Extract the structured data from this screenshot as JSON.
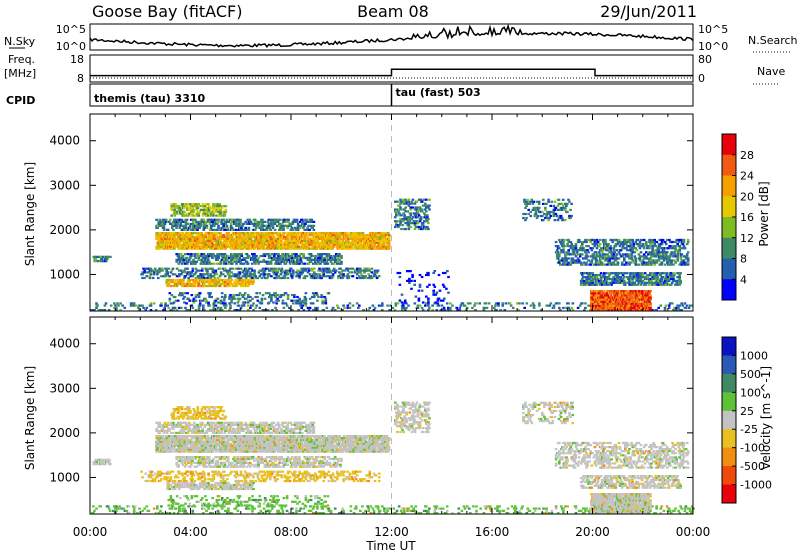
{
  "header": {
    "title_left": "Goose Bay (fitACF)",
    "title_center": "Beam 08",
    "title_right": "29/Jun/2011"
  },
  "summary_panels": {
    "nsky_label": "N.Sky",
    "nsearch_label": "N.Search",
    "nsky_ticks": [
      "10^5",
      "10^0"
    ],
    "nsearch_ticks": [
      "10^5",
      "10^0"
    ],
    "freq_label_line1": "Freq.",
    "freq_label_line2": "[MHz]",
    "freq_ticks": [
      "18",
      "8"
    ],
    "nave_label": "Nave",
    "nave_ticks": [
      "80",
      "0"
    ],
    "cpid_label": "CPID",
    "cpid_modes": [
      {
        "label": "themis (tau) 3310",
        "start_hour": 0,
        "end_hour": 12
      },
      {
        "label": "tau (fast) 503",
        "start_hour": 12,
        "end_hour": 24
      }
    ],
    "freq_mhz": [
      {
        "start_hour": 0,
        "end_hour": 12,
        "value": 10.0
      },
      {
        "start_hour": 12,
        "end_hour": 20.1,
        "value": 12.9
      },
      {
        "start_hour": 20.1,
        "end_hour": 24,
        "value": 10.0
      }
    ]
  },
  "chart_data": [
    {
      "type": "heatmap",
      "name": "power",
      "ylabel": "Slant Range [km]",
      "xlim_hours": [
        0,
        24
      ],
      "ylim_km": [
        180,
        4600
      ],
      "yticks": [
        1000,
        2000,
        3000,
        4000
      ],
      "colorbar": {
        "label": "Power [dB]",
        "ticks": [
          "28",
          "24",
          "20",
          "16",
          "12",
          "8",
          "4"
        ],
        "colors": [
          "#e8000b",
          "#f05a12",
          "#f5a000",
          "#e8c800",
          "#7dbd22",
          "#3e8a66",
          "#235fae",
          "#0000ff"
        ]
      },
      "echo_regions": [
        {
          "t0": 0.1,
          "t1": 0.8,
          "r0": 1280,
          "r1": 1420,
          "density": 0.7,
          "level": 1
        },
        {
          "t0": 2.6,
          "t1": 8.9,
          "r0": 1980,
          "r1": 2250,
          "density": 0.5,
          "level": 1
        },
        {
          "t0": 3.2,
          "t1": 5.4,
          "r0": 2300,
          "r1": 2600,
          "density": 0.5,
          "level": 2
        },
        {
          "t0": 2.6,
          "t1": 11.9,
          "r0": 1560,
          "r1": 1950,
          "density": 0.75,
          "level": 3
        },
        {
          "t0": 3.4,
          "t1": 10.0,
          "r0": 1220,
          "r1": 1480,
          "density": 0.45,
          "level": 1
        },
        {
          "t0": 2.0,
          "t1": 11.5,
          "r0": 900,
          "r1": 1150,
          "density": 0.35,
          "level": 1
        },
        {
          "t0": 3.0,
          "t1": 6.5,
          "r0": 720,
          "r1": 900,
          "density": 0.65,
          "level": 3
        },
        {
          "t0": 3.0,
          "t1": 9.5,
          "r0": 350,
          "r1": 600,
          "density": 0.2,
          "level": 1
        },
        {
          "t0": 0.0,
          "t1": 24.0,
          "r0": 180,
          "r1": 380,
          "density": 0.18,
          "level": 1
        },
        {
          "t0": 12.1,
          "t1": 13.5,
          "r0": 2000,
          "r1": 2700,
          "density": 0.35,
          "level": 1
        },
        {
          "t0": 12.2,
          "t1": 14.3,
          "r0": 350,
          "r1": 1100,
          "density": 0.08,
          "level": 0
        },
        {
          "t0": 17.2,
          "t1": 19.2,
          "r0": 2200,
          "r1": 2700,
          "density": 0.25,
          "level": 1
        },
        {
          "t0": 18.5,
          "t1": 23.8,
          "r0": 1200,
          "r1": 1800,
          "density": 0.4,
          "level": 1
        },
        {
          "t0": 19.5,
          "t1": 23.5,
          "r0": 750,
          "r1": 1050,
          "density": 0.55,
          "level": 1
        },
        {
          "t0": 19.9,
          "t1": 22.3,
          "r0": 180,
          "r1": 650,
          "density": 0.85,
          "level": 4
        }
      ]
    },
    {
      "type": "heatmap",
      "name": "velocity",
      "ylabel": "Slant Range [km]",
      "xlabel": "Time UT",
      "xlim_hours": [
        0,
        24
      ],
      "ylim_km": [
        180,
        4600
      ],
      "yticks": [
        1000,
        2000,
        3000,
        4000
      ],
      "xticks": [
        "00:00",
        "04:00",
        "08:00",
        "12:00",
        "16:00",
        "20:00",
        "00:00"
      ],
      "colorbar": {
        "label": "Velocity [m s^-1]",
        "ticks": [
          "1000",
          "500",
          "100",
          "25",
          "-25",
          "-100",
          "-500",
          "-1000"
        ],
        "colors": [
          "#0a12c4",
          "#2a58b5",
          "#3f8a62",
          "#5dc238",
          "#c3c3c3",
          "#e8c020",
          "#f28e12",
          "#ef4a0c",
          "#e8000b"
        ]
      },
      "echo_regions": [
        {
          "t0": 0.1,
          "t1": 0.8,
          "r0": 1280,
          "r1": 1420,
          "density": 0.6,
          "level": 4
        },
        {
          "t0": 2.6,
          "t1": 8.9,
          "r0": 1980,
          "r1": 2250,
          "density": 0.5,
          "level": 4
        },
        {
          "t0": 3.2,
          "t1": 5.4,
          "r0": 2300,
          "r1": 2600,
          "density": 0.4,
          "level": 5
        },
        {
          "t0": 2.6,
          "t1": 11.9,
          "r0": 1560,
          "r1": 1950,
          "density": 0.75,
          "level": 4
        },
        {
          "t0": 3.4,
          "t1": 10.0,
          "r0": 1220,
          "r1": 1480,
          "density": 0.45,
          "level": 4
        },
        {
          "t0": 2.0,
          "t1": 11.5,
          "r0": 900,
          "r1": 1150,
          "density": 0.3,
          "level": 5
        },
        {
          "t0": 3.0,
          "t1": 6.5,
          "r0": 720,
          "r1": 900,
          "density": 0.55,
          "level": 4
        },
        {
          "t0": 3.0,
          "t1": 9.5,
          "r0": 350,
          "r1": 600,
          "density": 0.18,
          "level": 3
        },
        {
          "t0": 0.0,
          "t1": 24.0,
          "r0": 180,
          "r1": 380,
          "density": 0.18,
          "level": 3
        },
        {
          "t0": 12.1,
          "t1": 13.5,
          "r0": 2000,
          "r1": 2700,
          "density": 0.35,
          "level": 4
        },
        {
          "t0": 17.2,
          "t1": 19.2,
          "r0": 2200,
          "r1": 2700,
          "density": 0.25,
          "level": 4
        },
        {
          "t0": 18.5,
          "t1": 23.8,
          "r0": 1200,
          "r1": 1800,
          "density": 0.35,
          "level": 4
        },
        {
          "t0": 19.5,
          "t1": 23.5,
          "r0": 750,
          "r1": 1050,
          "density": 0.45,
          "level": 4
        },
        {
          "t0": 19.9,
          "t1": 22.3,
          "r0": 180,
          "r1": 650,
          "density": 0.8,
          "level": 4
        }
      ]
    }
  ]
}
